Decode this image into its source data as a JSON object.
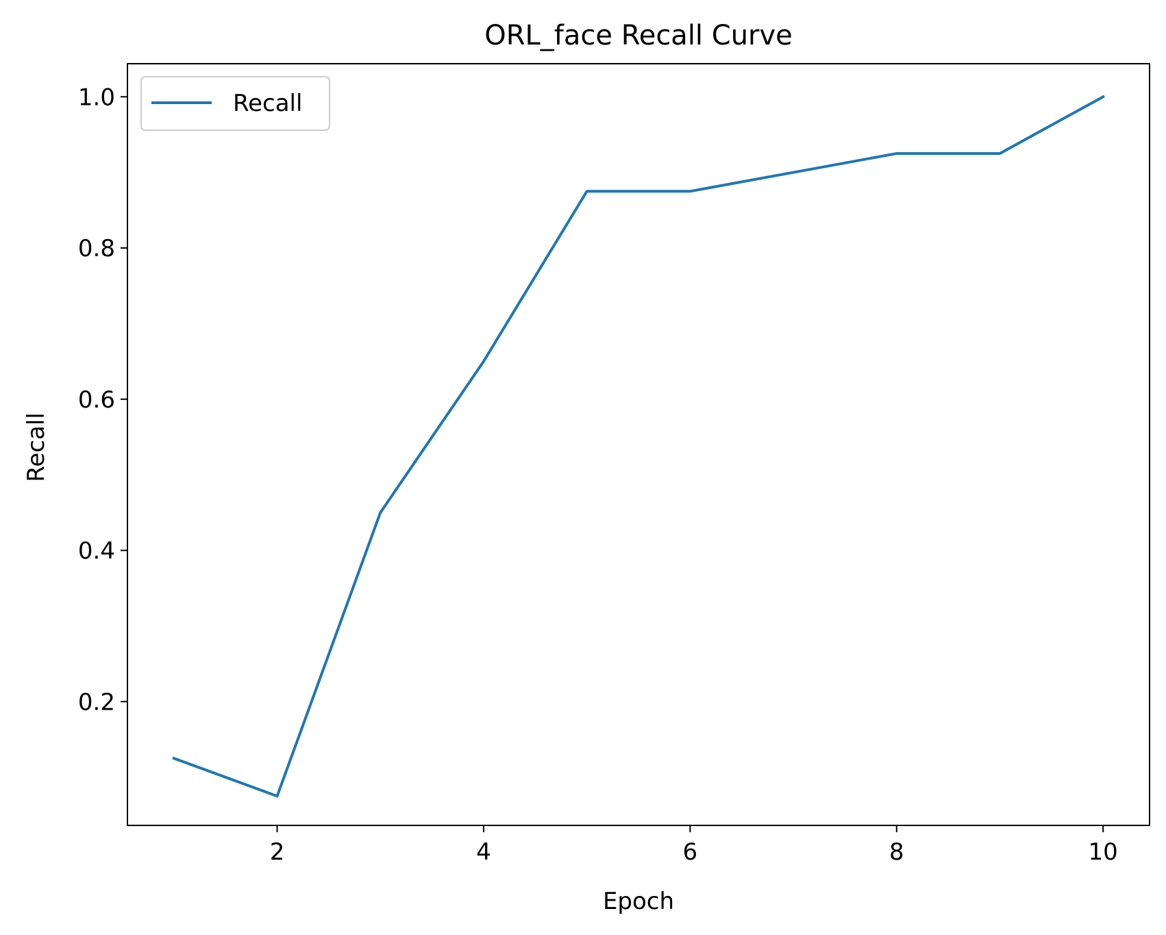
{
  "chart_data": {
    "type": "line",
    "title": "ORL_face Recall Curve",
    "xlabel": "Epoch",
    "ylabel": "Recall",
    "x": [
      1,
      2,
      3,
      4,
      5,
      6,
      7,
      8,
      9,
      10
    ],
    "series": [
      {
        "name": "Recall",
        "color": "#1f77b4",
        "values": [
          0.125,
          0.075,
          0.45,
          0.65,
          0.875,
          0.875,
          0.9,
          0.925,
          0.925,
          1.0
        ]
      }
    ],
    "xlim": [
      0.55,
      10.45
    ],
    "ylim": [
      0.03625,
      1.04375
    ],
    "xticks": [
      2,
      4,
      6,
      8,
      10
    ],
    "yticks": [
      0.2,
      0.4,
      0.6,
      0.8,
      1.0
    ],
    "xtick_labels": [
      "2",
      "4",
      "6",
      "8",
      "10"
    ],
    "ytick_labels": [
      "0.2",
      "0.4",
      "0.6",
      "0.8",
      "1.0"
    ],
    "grid": false,
    "legend_position": "upper-left"
  }
}
